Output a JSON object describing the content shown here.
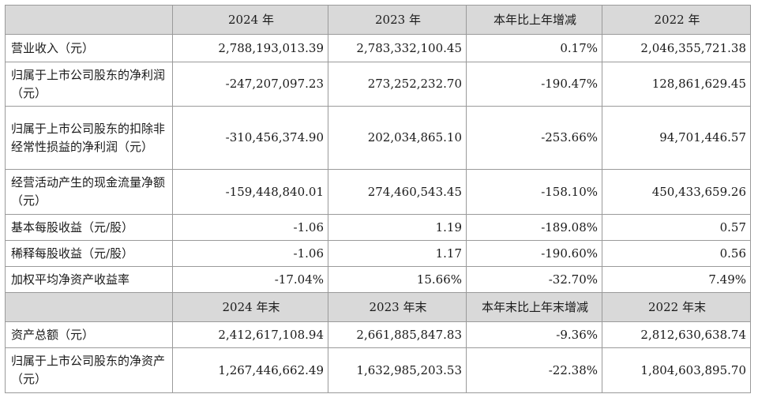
{
  "header_period": {
    "col1": "2024 年",
    "col2": "2023 年",
    "col3": "本年比上年增减",
    "col4": "2022 年"
  },
  "period_rows": [
    {
      "label": "营业收入（元）",
      "v2024": "2,788,193,013.39",
      "v2023": "2,783,332,100.45",
      "change": "0.17%",
      "v2022": "2,046,355,721.38"
    },
    {
      "label": "归属于上市公司股东的净利润（元）",
      "v2024": "-247,207,097.23",
      "v2023": "273,252,232.70",
      "change": "-190.47%",
      "v2022": "128,861,629.45"
    },
    {
      "label": "归属于上市公司股东的扣除非经常性损益的净利润（元）",
      "v2024": "-310,456,374.90",
      "v2023": "202,034,865.10",
      "change": "-253.66%",
      "v2022": "94,701,446.57"
    },
    {
      "label": "经营活动产生的现金流量净额（元）",
      "v2024": "-159,448,840.01",
      "v2023": "274,460,543.45",
      "change": "-158.10%",
      "v2022": "450,433,659.26"
    },
    {
      "label": "基本每股收益（元/股）",
      "v2024": "-1.06",
      "v2023": "1.19",
      "change": "-189.08%",
      "v2022": "0.57"
    },
    {
      "label": "稀释每股收益（元/股）",
      "v2024": "-1.06",
      "v2023": "1.17",
      "change": "-190.60%",
      "v2022": "0.56"
    },
    {
      "label": "加权平均净资产收益率",
      "v2024": "-17.04%",
      "v2023": "15.66%",
      "change": "-32.70%",
      "v2022": "7.49%"
    }
  ],
  "header_yearend": {
    "col1": "2024 年末",
    "col2": "2023 年末",
    "col3": "本年末比上年末增减",
    "col4": "2022 年末"
  },
  "yearend_rows": [
    {
      "label": "资产总额（元）",
      "v2024": "2,412,617,108.94",
      "v2023": "2,661,885,847.83",
      "change": "-9.36%",
      "v2022": "2,812,630,638.74"
    },
    {
      "label": "归属于上市公司股东的净资产（元）",
      "v2024": "1,267,446,662.49",
      "v2023": "1,632,985,203.53",
      "change": "-22.38%",
      "v2022": "1,804,603,895.70"
    }
  ],
  "colors": {
    "header_bg": "#d9d9d9",
    "border": "#9a9a9a",
    "text": "#1a1a1a"
  }
}
